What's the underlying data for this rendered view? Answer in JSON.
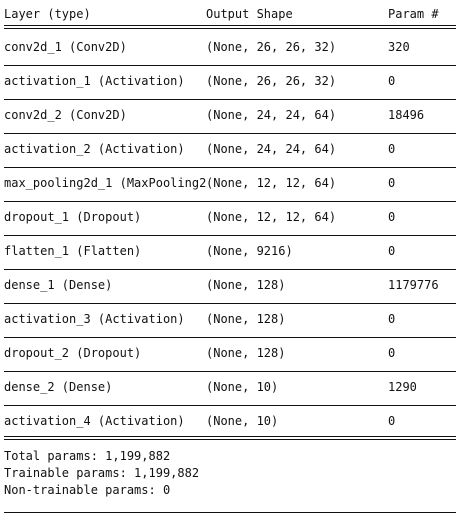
{
  "header": {
    "layer": "Layer (type)",
    "output": "Output Shape",
    "params": "Param #"
  },
  "rows": [
    {
      "layer": "conv2d_1 (Conv2D)",
      "output": "(None, 26, 26, 32)",
      "params": "320"
    },
    {
      "layer": "activation_1 (Activation)",
      "output": "(None, 26, 26, 32)",
      "params": "0"
    },
    {
      "layer": "conv2d_2 (Conv2D)",
      "output": "(None, 24, 24, 64)",
      "params": "18496"
    },
    {
      "layer": "activation_2 (Activation)",
      "output": "(None, 24, 24, 64)",
      "params": "0"
    },
    {
      "layer": "max_pooling2d_1 (MaxPooling2",
      "output": "(None, 12, 12, 64)",
      "params": "0"
    },
    {
      "layer": "dropout_1 (Dropout)",
      "output": "(None, 12, 12, 64)",
      "params": "0"
    },
    {
      "layer": "flatten_1 (Flatten)",
      "output": "(None, 9216)",
      "params": "0"
    },
    {
      "layer": "dense_1 (Dense)",
      "output": "(None, 128)",
      "params": "1179776"
    },
    {
      "layer": "activation_3 (Activation)",
      "output": "(None, 128)",
      "params": "0"
    },
    {
      "layer": "dropout_2 (Dropout)",
      "output": "(None, 128)",
      "params": "0"
    },
    {
      "layer": "dense_2 (Dense)",
      "output": "(None, 10)",
      "params": "1290"
    },
    {
      "layer": "activation_4 (Activation)",
      "output": "(None, 10)",
      "params": "0"
    }
  ],
  "totals": {
    "total": "Total params: 1,199,882",
    "trainable": "Trainable params: 1,199,882",
    "non_trainable": "Non-trainable params: 0"
  }
}
